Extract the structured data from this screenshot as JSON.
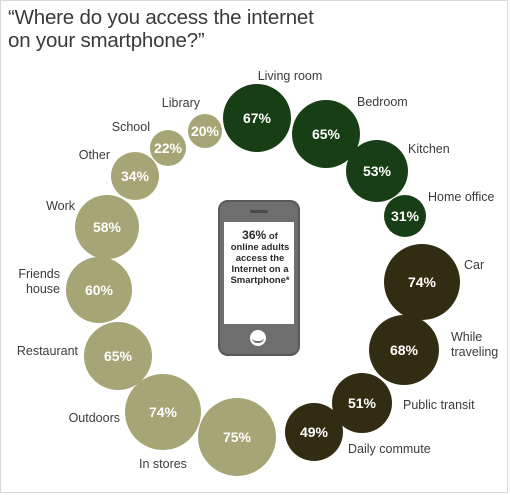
{
  "title": "“Where do you access the internet on your smartphone?”",
  "phone_text": {
    "pct": "36%",
    "rest": "of online adults access the Internet on a Smartphone*"
  },
  "chart_data": {
    "type": "bubble",
    "title": "“Where do you access the internet on your smartphone?”",
    "unit": "%",
    "items": [
      {
        "label": "Living room",
        "value": 67,
        "group": "home"
      },
      {
        "label": "Bedroom",
        "value": 65,
        "group": "home"
      },
      {
        "label": "Kitchen",
        "value": 53,
        "group": "home"
      },
      {
        "label": "Home office",
        "value": 31,
        "group": "home"
      },
      {
        "label": "Car",
        "value": 74,
        "group": "transit"
      },
      {
        "label": "While traveling",
        "value": 68,
        "group": "transit"
      },
      {
        "label": "Public transit",
        "value": 51,
        "group": "transit"
      },
      {
        "label": "Daily commute",
        "value": 49,
        "group": "transit"
      },
      {
        "label": "In stores",
        "value": 75,
        "group": "out"
      },
      {
        "label": "Outdoors",
        "value": 74,
        "group": "out"
      },
      {
        "label": "Restaurant",
        "value": 65,
        "group": "out"
      },
      {
        "label": "Friends house",
        "value": 60,
        "group": "out"
      },
      {
        "label": "Work",
        "value": 58,
        "group": "out"
      },
      {
        "label": "Other",
        "value": 34,
        "group": "out"
      },
      {
        "label": "School",
        "value": 22,
        "group": "out"
      },
      {
        "label": "Library",
        "value": 20,
        "group": "out"
      }
    ],
    "colors": {
      "home": "#173e14",
      "transit": "#322d12",
      "out": "#a6a576"
    }
  }
}
